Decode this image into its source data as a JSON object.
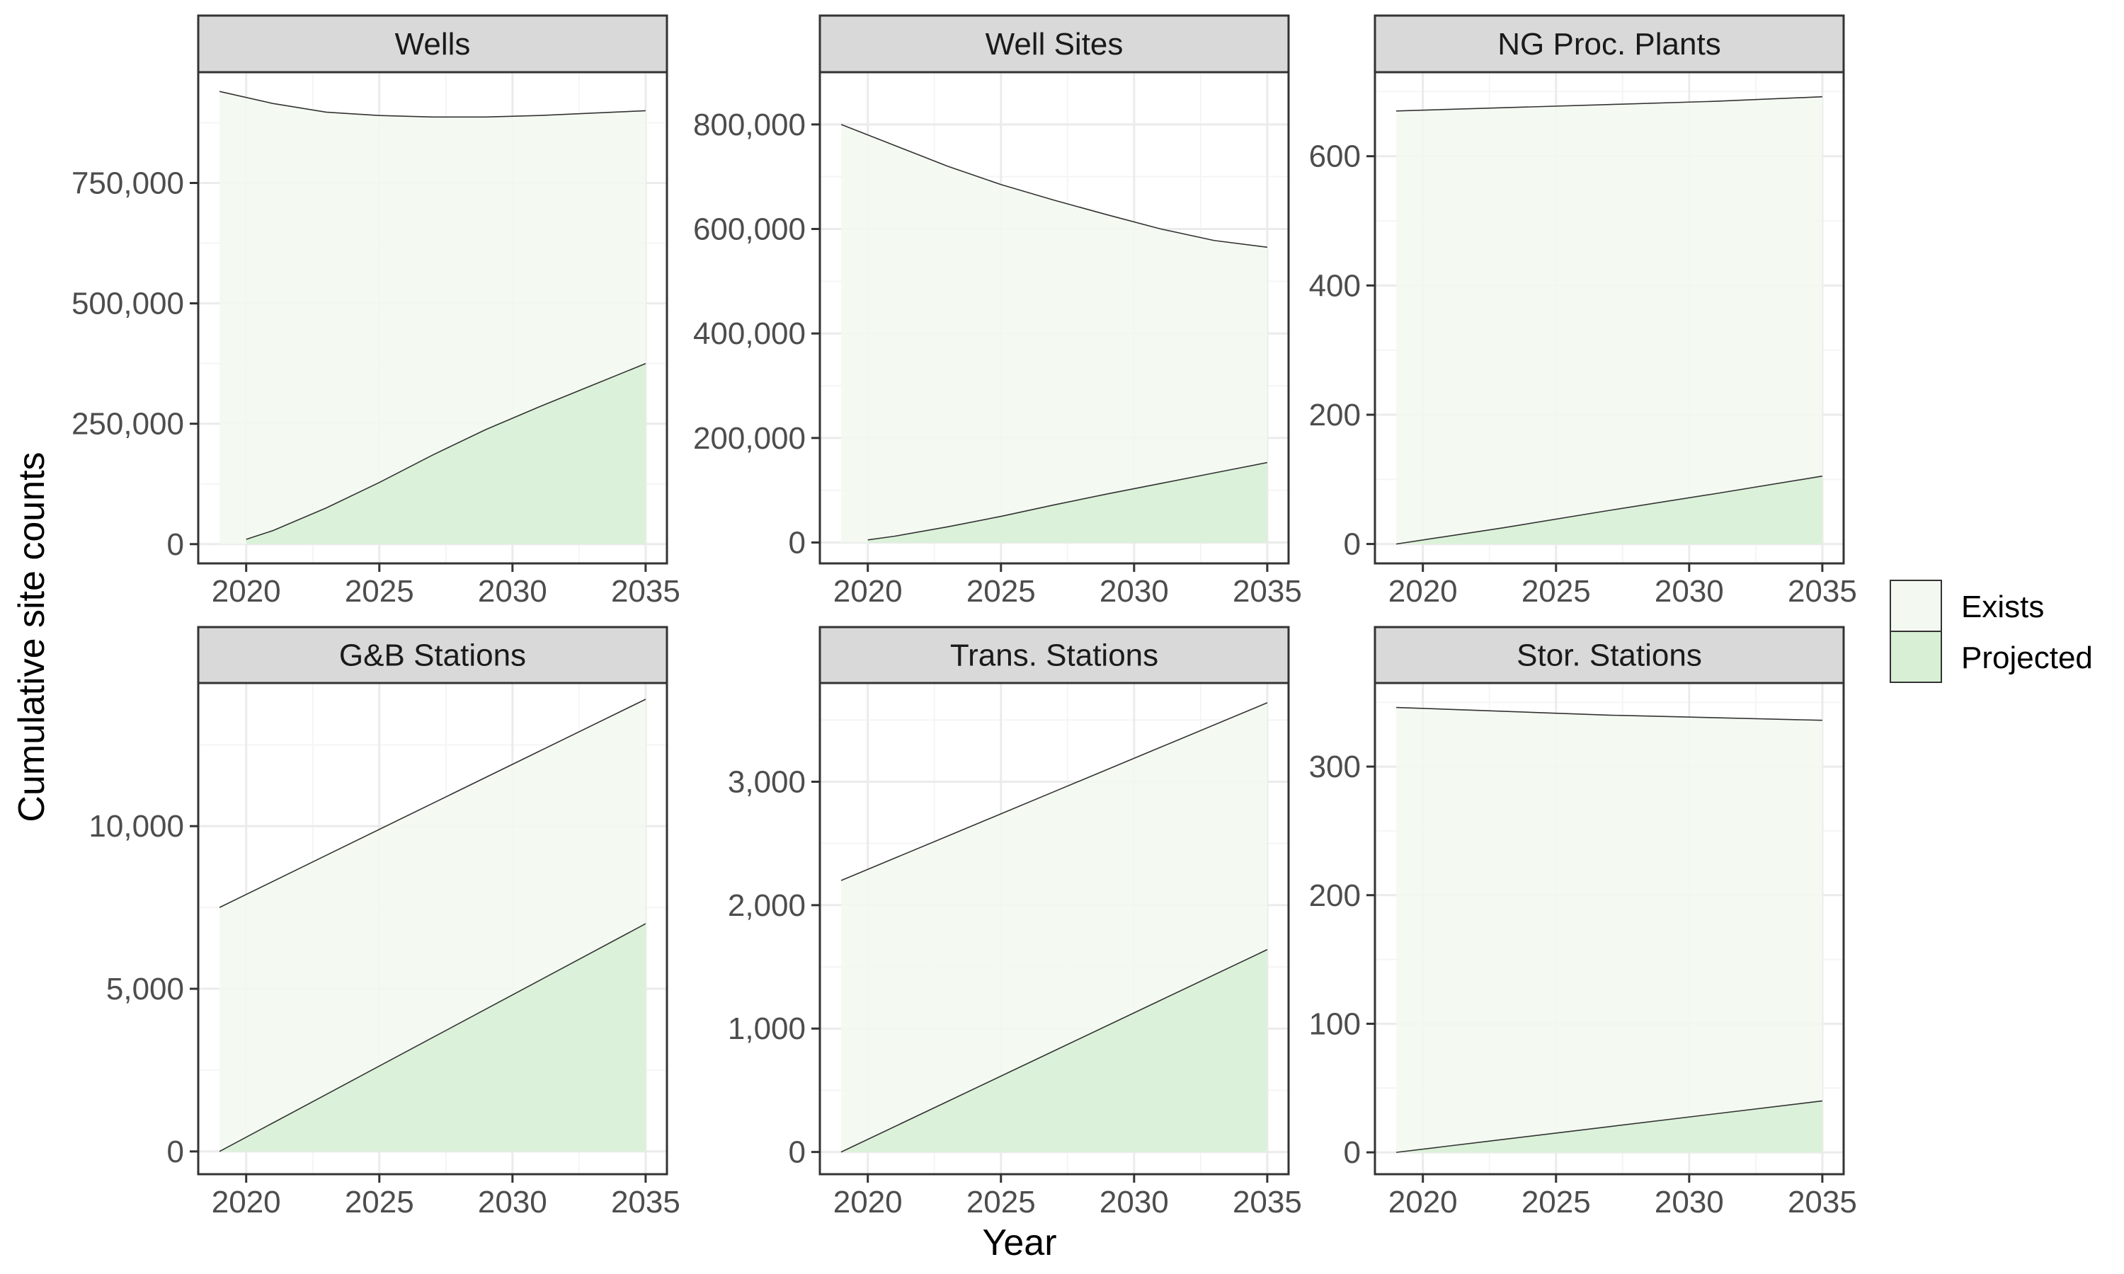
{
  "chart_data": {
    "type": "area",
    "layout": "facet grid, 2 rows x 3 columns, independent y scales",
    "xlabel": "Year",
    "ylabel": "Cumulative site counts",
    "x_ticks": [
      2020,
      2025,
      2030,
      2035
    ],
    "x_range": [
      2019,
      2035
    ],
    "grid": true,
    "legend": {
      "position": "right",
      "entries": [
        {
          "label": "Exists",
          "color": "#f3f9f1"
        },
        {
          "label": "Projected",
          "color": "#d8efd6"
        }
      ]
    },
    "colors": {
      "exists_fill": "#f3f9f1",
      "projected_fill": "#d8efd6",
      "outline": "#333333",
      "strip_background": "#d9d9d9",
      "panel_border": "#333333",
      "grid_major": "#ebebeb",
      "grid_minor": "#f5f5f5"
    },
    "panels": [
      {
        "title": "Wells",
        "ylim": [
          -40000,
          980000
        ],
        "y_ticks": [
          0,
          250000,
          500000,
          750000
        ],
        "y_tick_labels": [
          "0",
          "250,000",
          "500,000",
          "750,000"
        ],
        "exists_top": {
          "x": [
            2019,
            2021,
            2023,
            2025,
            2027,
            2029,
            2031,
            2033,
            2035
          ],
          "y": [
            940000,
            915000,
            897000,
            890000,
            887000,
            887000,
            890000,
            895000,
            900000
          ]
        },
        "projected_top": {
          "x": [
            2020,
            2021,
            2023,
            2025,
            2027,
            2029,
            2031,
            2033,
            2035
          ],
          "y": [
            10000,
            28000,
            75000,
            128000,
            185000,
            238000,
            285000,
            330000,
            375000
          ]
        }
      },
      {
        "title": "Well Sites",
        "ylim": [
          -40000,
          900000
        ],
        "y_ticks": [
          0,
          200000,
          400000,
          600000,
          800000
        ],
        "y_tick_labels": [
          "0",
          "200,000",
          "400,000",
          "600,000",
          "800,000"
        ],
        "exists_top": {
          "x": [
            2019,
            2021,
            2023,
            2025,
            2027,
            2029,
            2031,
            2033,
            2035
          ],
          "y": [
            800000,
            760000,
            720000,
            685000,
            655000,
            627000,
            600000,
            578000,
            565000
          ]
        },
        "projected_top": {
          "x": [
            2020,
            2021,
            2023,
            2025,
            2027,
            2029,
            2031,
            2033,
            2035
          ],
          "y": [
            5000,
            12000,
            30000,
            50000,
            72000,
            93000,
            113000,
            133000,
            153000
          ]
        }
      },
      {
        "title": "NG Proc. Plants",
        "ylim": [
          -30,
          730
        ],
        "y_ticks": [
          0,
          200,
          400,
          600
        ],
        "y_tick_labels": [
          "0",
          "200",
          "400",
          "600"
        ],
        "exists_top": {
          "x": [
            2019,
            2023,
            2027,
            2031,
            2035
          ],
          "y": [
            670,
            675,
            680,
            685,
            692
          ]
        },
        "projected_top": {
          "x": [
            2019,
            2023,
            2027,
            2031,
            2035
          ],
          "y": [
            0,
            25,
            52,
            78,
            105
          ]
        }
      },
      {
        "title": "G&B Stations",
        "ylim": [
          -700,
          14400
        ],
        "y_ticks": [
          0,
          5000,
          10000
        ],
        "y_tick_labels": [
          "0",
          "5,000",
          "10,000"
        ],
        "exists_top": {
          "x": [
            2019,
            2023,
            2027,
            2031,
            2035
          ],
          "y": [
            7500,
            9100,
            10700,
            12300,
            13900
          ]
        },
        "projected_top": {
          "x": [
            2019,
            2023,
            2027,
            2031,
            2035
          ],
          "y": [
            0,
            1750,
            3500,
            5250,
            7000
          ]
        }
      },
      {
        "title": "Trans. Stations",
        "ylim": [
          -180,
          3800
        ],
        "y_ticks": [
          0,
          1000,
          2000,
          3000
        ],
        "y_tick_labels": [
          "0",
          "1,000",
          "2,000",
          "3,000"
        ],
        "exists_top": {
          "x": [
            2019,
            2023,
            2027,
            2031,
            2035
          ],
          "y": [
            2200,
            2560,
            2920,
            3280,
            3640
          ]
        },
        "projected_top": {
          "x": [
            2019,
            2023,
            2027,
            2031,
            2035
          ],
          "y": [
            0,
            410,
            820,
            1230,
            1640
          ]
        }
      },
      {
        "title": "Stor. Stations",
        "ylim": [
          -17,
          365
        ],
        "y_ticks": [
          0,
          100,
          200,
          300
        ],
        "y_tick_labels": [
          "0",
          "100",
          "200",
          "300"
        ],
        "exists_top": {
          "x": [
            2019,
            2023,
            2027,
            2031,
            2035
          ],
          "y": [
            346,
            343,
            340,
            338,
            336
          ]
        },
        "projected_top": {
          "x": [
            2019,
            2023,
            2027,
            2031,
            2035
          ],
          "y": [
            0,
            10,
            20,
            30,
            40
          ]
        }
      }
    ]
  }
}
